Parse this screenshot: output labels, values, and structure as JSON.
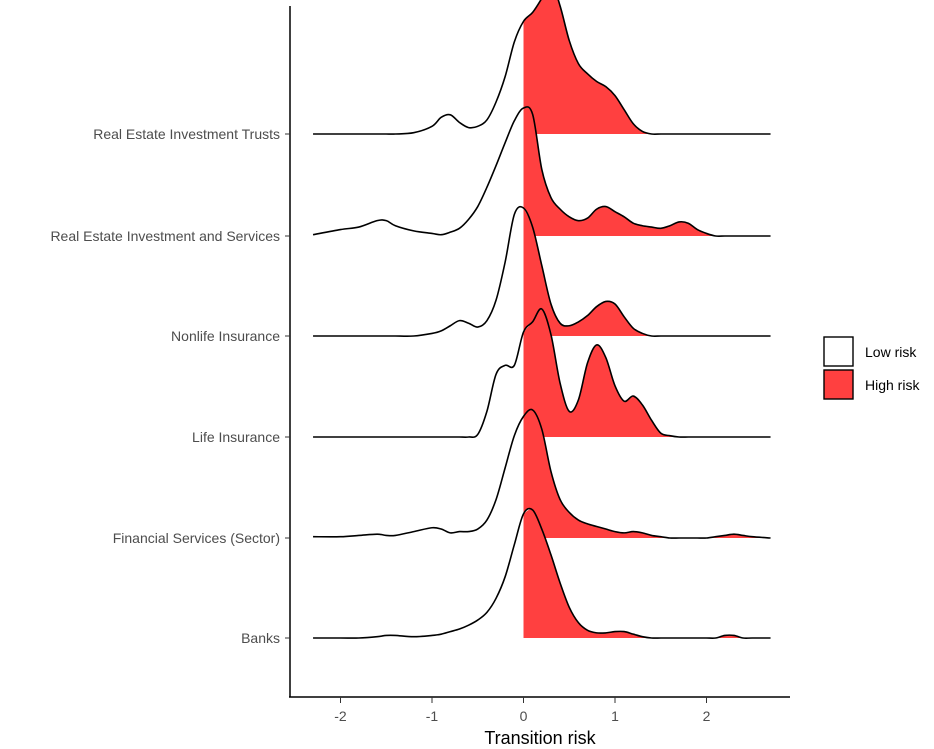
{
  "chart_data": {
    "type": "ridgeline",
    "xlabel": "Transition risk",
    "ylabel": "",
    "xlim": [
      -2.35,
      2.7
    ],
    "x_ticks": [
      -2,
      -1,
      0,
      1,
      2
    ],
    "x_tick_labels": [
      "-2",
      "-1",
      "0",
      "1",
      "2"
    ],
    "threshold": 0,
    "fill_colors": {
      "Low risk": "#ffffff",
      "High risk": "#ff4040"
    },
    "outline_color": "#000000",
    "legend": {
      "position": "right",
      "entries": [
        {
          "label": "Low risk",
          "color": "#ffffff"
        },
        {
          "label": "High risk",
          "color": "#ff4040"
        }
      ]
    },
    "grid": false,
    "x": [
      -2.3,
      -2.0,
      -1.8,
      -1.6,
      -1.5,
      -1.4,
      -1.2,
      -1.0,
      -0.9,
      -0.8,
      -0.7,
      -0.6,
      -0.5,
      -0.4,
      -0.3,
      -0.2,
      -0.1,
      0.0,
      0.1,
      0.2,
      0.3,
      0.4,
      0.5,
      0.6,
      0.7,
      0.8,
      0.9,
      1.0,
      1.1,
      1.2,
      1.3,
      1.4,
      1.5,
      1.6,
      1.7,
      1.8,
      1.9,
      2.0,
      2.1,
      2.2,
      2.3,
      2.4,
      2.5,
      2.7
    ],
    "series": [
      {
        "name": "Real Estate Investment Trusts",
        "values": [
          0,
          0,
          0,
          0,
          0,
          0,
          0.01,
          0.06,
          0.13,
          0.15,
          0.09,
          0.05,
          0.06,
          0.11,
          0.25,
          0.45,
          0.72,
          0.88,
          0.95,
          1.06,
          1.19,
          1.0,
          0.73,
          0.55,
          0.47,
          0.41,
          0.37,
          0.3,
          0.19,
          0.08,
          0.02,
          0,
          0,
          0,
          0,
          0,
          0,
          0,
          0,
          0,
          0,
          0,
          0,
          0
        ]
      },
      {
        "name": "Real Estate Investment and Services",
        "values": [
          0.01,
          0.05,
          0.07,
          0.12,
          0.12,
          0.08,
          0.04,
          0.02,
          0.01,
          0.03,
          0.06,
          0.13,
          0.23,
          0.38,
          0.55,
          0.73,
          0.9,
          1.0,
          0.95,
          0.52,
          0.3,
          0.21,
          0.15,
          0.12,
          0.14,
          0.21,
          0.23,
          0.19,
          0.15,
          0.1,
          0.08,
          0.07,
          0.06,
          0.08,
          0.11,
          0.1,
          0.05,
          0.02,
          0,
          0,
          0,
          0,
          0,
          0
        ]
      },
      {
        "name": "Nonlife Insurance",
        "values": [
          0,
          0,
          0,
          0,
          0,
          0,
          0,
          0.02,
          0.04,
          0.08,
          0.12,
          0.1,
          0.07,
          0.12,
          0.28,
          0.58,
          0.95,
          1.0,
          0.85,
          0.55,
          0.25,
          0.1,
          0.08,
          0.11,
          0.16,
          0.23,
          0.27,
          0.25,
          0.15,
          0.06,
          0.02,
          0,
          0,
          0,
          0,
          0,
          0,
          0,
          0,
          0,
          0,
          0,
          0,
          0
        ]
      },
      {
        "name": "Life Insurance",
        "values": [
          0,
          0,
          0,
          0,
          0,
          0,
          0,
          0,
          0,
          0,
          0,
          0,
          0.02,
          0.2,
          0.49,
          0.56,
          0.56,
          0.82,
          0.9,
          1.0,
          0.8,
          0.42,
          0.2,
          0.29,
          0.58,
          0.72,
          0.62,
          0.4,
          0.28,
          0.32,
          0.25,
          0.13,
          0.03,
          0.01,
          0,
          0,
          0,
          0,
          0,
          0,
          0,
          0,
          0,
          0
        ]
      },
      {
        "name": "Financial Services (Sector)",
        "values": [
          0.01,
          0.01,
          0.02,
          0.03,
          0.02,
          0.02,
          0.05,
          0.08,
          0.07,
          0.04,
          0.05,
          0.05,
          0.07,
          0.14,
          0.3,
          0.55,
          0.8,
          0.95,
          1.0,
          0.85,
          0.52,
          0.3,
          0.2,
          0.14,
          0.11,
          0.09,
          0.07,
          0.05,
          0.04,
          0.05,
          0.04,
          0.02,
          0.01,
          0,
          0,
          0,
          0,
          0,
          0.01,
          0.02,
          0.03,
          0.02,
          0.01,
          0
        ]
      },
      {
        "name": "Banks",
        "values": [
          0,
          0,
          0,
          0.01,
          0.02,
          0.02,
          0.01,
          0.02,
          0.03,
          0.05,
          0.07,
          0.1,
          0.14,
          0.2,
          0.31,
          0.48,
          0.73,
          0.97,
          1.0,
          0.85,
          0.65,
          0.43,
          0.24,
          0.12,
          0.06,
          0.04,
          0.04,
          0.05,
          0.05,
          0.03,
          0.01,
          0,
          0,
          0,
          0,
          0,
          0,
          0,
          0,
          0.02,
          0.02,
          0,
          0,
          0
        ]
      }
    ]
  }
}
